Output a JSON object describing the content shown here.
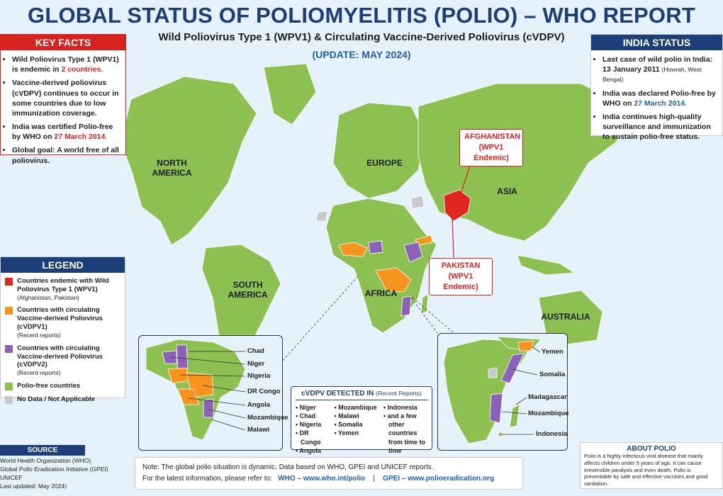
{
  "header": {
    "title": "GLOBAL STATUS OF POLIOMYELITIS (POLIO) – WHO REPORT",
    "subtitle": "Wild Poliovirus Type 1 (WPV1) & Circulating Vaccine-Derived Poliovirus (cVDPV)",
    "update": "(UPDATE: MAY 2024)"
  },
  "key_facts": {
    "title": "KEY FACTS",
    "items": [
      {
        "text": "Wild Poliovirus Type 1 (WPV1) is endemic in",
        "highlight": "2 countries."
      },
      {
        "text": "Vaccine-derived poliovirus (cVDPV) continues to occur in some countries due to low immunization coverage."
      },
      {
        "text": "India was certified Polio-free by WHO on",
        "highlight": "27 March 2014."
      },
      {
        "text": "Global goal: A world free of all poliovirus."
      }
    ]
  },
  "india_status": {
    "title": "INDIA STATUS",
    "items": [
      {
        "text": "Last case of wild polio in India:",
        "date": "13 January 2011",
        "place": "(Howrah, West Bengal)"
      },
      {
        "text": "India was declared Polio-free by WHO on",
        "highlight": "27 March 2014."
      },
      {
        "text": "India continues high-quality surveillance and immunization to sustain polio-free status."
      }
    ]
  },
  "map": {
    "regions": [
      "NORTH AMERICA",
      "SOUTH AMERICA",
      "EUROPE",
      "AFRICA",
      "ASIA",
      "AUSTRALIA"
    ],
    "callouts": [
      {
        "country": "AFGHANISTAN",
        "status": "(WPV1 Endemic)"
      },
      {
        "country": "PAKISTAN",
        "status": "(WPV1 Endemic)"
      }
    ]
  },
  "legend": {
    "title": "LEGEND",
    "items": [
      {
        "label": "Countries endemic with Wild Poliovirus Type 1 (WPV1)",
        "note": "(Afghanistan, Pakistan)",
        "color": "#e0261f"
      },
      {
        "label": "Countries with circulating Vaccine-derived Poliovirus (cVDPV1)",
        "note": "(Recent reports)",
        "color": "#f7941d"
      },
      {
        "label": "Countries with circulating Vaccine-derived Poliovirus (cVDPV2)",
        "note": "(Recent reports)",
        "color": "#8b62b8"
      },
      {
        "label": "Polio-free countries",
        "color": "#8cc152"
      },
      {
        "label": "No Data / Not Applicable",
        "color": "#c8c8c8"
      }
    ]
  },
  "africa_inset": {
    "labels": [
      "Chad",
      "Niger",
      "Nigeria",
      "DR Congo",
      "Angola",
      "Mozambique",
      "Malawi"
    ]
  },
  "east_inset": {
    "labels": [
      "Yemen",
      "Somalia",
      "Madagascar",
      "Mozambique",
      "Indonesia"
    ]
  },
  "cvdpv_box": {
    "title": "cVDPV DETECTED IN",
    "subtitle": "(Recent Reports)",
    "columns": [
      [
        "Niger",
        "Chad",
        "Nigeria",
        "DR Congo",
        "Angola"
      ],
      [
        "Mozambique",
        "Malawi",
        "Somalia",
        "Yemen"
      ],
      [
        "Indonesia",
        "and a few other countries from time to time"
      ]
    ]
  },
  "source": {
    "title": "SOURCE",
    "lines": [
      "World Health Organization (WHO)",
      "Global Polio Eradication Initiative (GPEI)",
      "UNICEF",
      "Last updated: May 2024)"
    ]
  },
  "note": {
    "text": "Note: The global polio situation is dynamic. Data based on WHO, GPEI and UNICEF reports.",
    "refer": "For the latest information, please refer to:",
    "links": [
      "WHO – www.who.int/polio",
      "GPEI – www.polioeradication.org"
    ]
  },
  "about": {
    "title": "ABOUT POLIO",
    "text": "Polio is a highly infectious viral disease that mainly affects children under 5 years of age. It can cause irreversible paralysis and even death. Polio is preventable by safe and effective vaccines and good sanitation."
  }
}
